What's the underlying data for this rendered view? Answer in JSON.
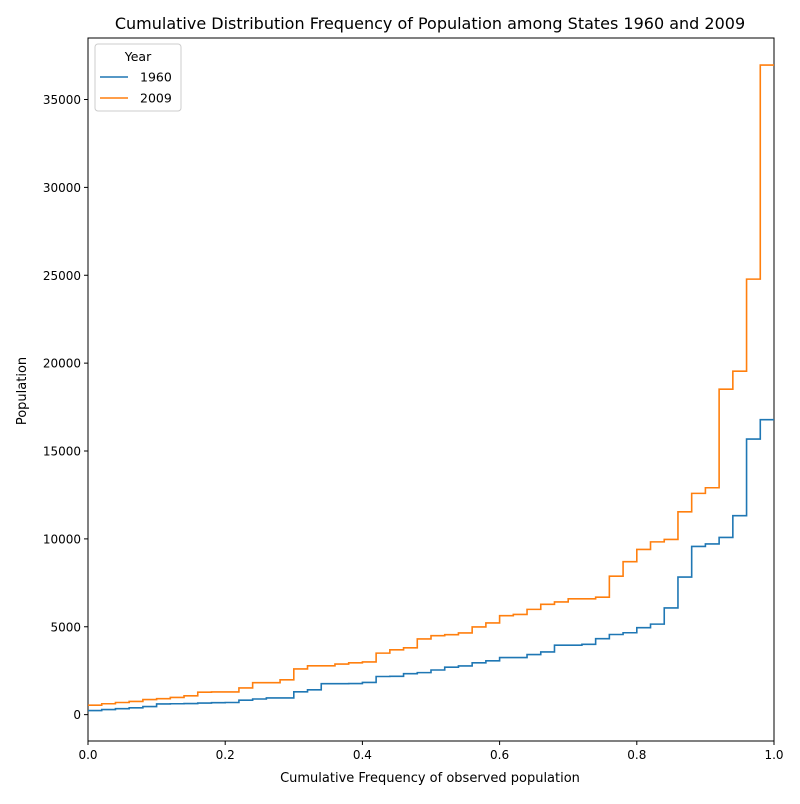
{
  "chart_data": {
    "type": "line",
    "step": "post",
    "title": "Cumulative Distribution Frequency of Population among States 1960 and 2009",
    "xlabel": "Cumulative Frequency of observed population",
    "ylabel": "Population",
    "xlim": [
      0,
      1
    ],
    "ylim": [
      -1500,
      38500
    ],
    "xticks": [
      0,
      0.2,
      0.4,
      0.6,
      0.8,
      1.0
    ],
    "xtick_labels": [
      "0.0",
      "0.2",
      "0.4",
      "0.6",
      "0.8",
      "1.0"
    ],
    "yticks": [
      0,
      5000,
      10000,
      15000,
      20000,
      25000,
      30000,
      35000
    ],
    "ytick_labels": [
      "0",
      "5000",
      "10000",
      "15000",
      "20000",
      "25000",
      "30000",
      "35000"
    ],
    "grid": false,
    "legend": {
      "title": "Year",
      "placement": "top-left"
    },
    "x": [
      0,
      0.02,
      0.04,
      0.06,
      0.08,
      0.1,
      0.12,
      0.14,
      0.16,
      0.18,
      0.2,
      0.22,
      0.24,
      0.26,
      0.28,
      0.3,
      0.32,
      0.34,
      0.36,
      0.38,
      0.4,
      0.42,
      0.44,
      0.46,
      0.48,
      0.5,
      0.52,
      0.54,
      0.56,
      0.58,
      0.6,
      0.62,
      0.64,
      0.66,
      0.68,
      0.7,
      0.72,
      0.74,
      0.76,
      0.78,
      0.8,
      0.82,
      0.84,
      0.86,
      0.88,
      0.9,
      0.92,
      0.94,
      0.96,
      0.98,
      1.0
    ],
    "series": [
      {
        "name": "1960",
        "color": "#1f77b4",
        "values": [
          230,
          290,
          340,
          390,
          460,
          610,
          620,
          630,
          660,
          680,
          690,
          820,
          890,
          950,
          950,
          1300,
          1410,
          1760,
          1760,
          1770,
          1830,
          2170,
          2180,
          2330,
          2390,
          2540,
          2700,
          2770,
          2950,
          3060,
          3250,
          3250,
          3420,
          3570,
          3950,
          3950,
          4000,
          4320,
          4560,
          4660,
          4950,
          5150,
          6070,
          7830,
          9570,
          9710,
          10080,
          11320,
          15680,
          16780,
          16780
        ]
      },
      {
        "name": "2009",
        "color": "#ff7f0e",
        "values": [
          540,
          620,
          690,
          750,
          860,
          910,
          980,
          1070,
          1280,
          1290,
          1290,
          1520,
          1820,
          1820,
          1980,
          2600,
          2780,
          2780,
          2880,
          2950,
          3000,
          3500,
          3690,
          3800,
          4310,
          4490,
          4550,
          4650,
          4990,
          5220,
          5630,
          5700,
          5990,
          6280,
          6410,
          6590,
          6590,
          6680,
          7880,
          8700,
          9400,
          9830,
          9970,
          11540,
          12590,
          12910,
          18520,
          19540,
          24780,
          36960,
          36960
        ]
      }
    ]
  }
}
